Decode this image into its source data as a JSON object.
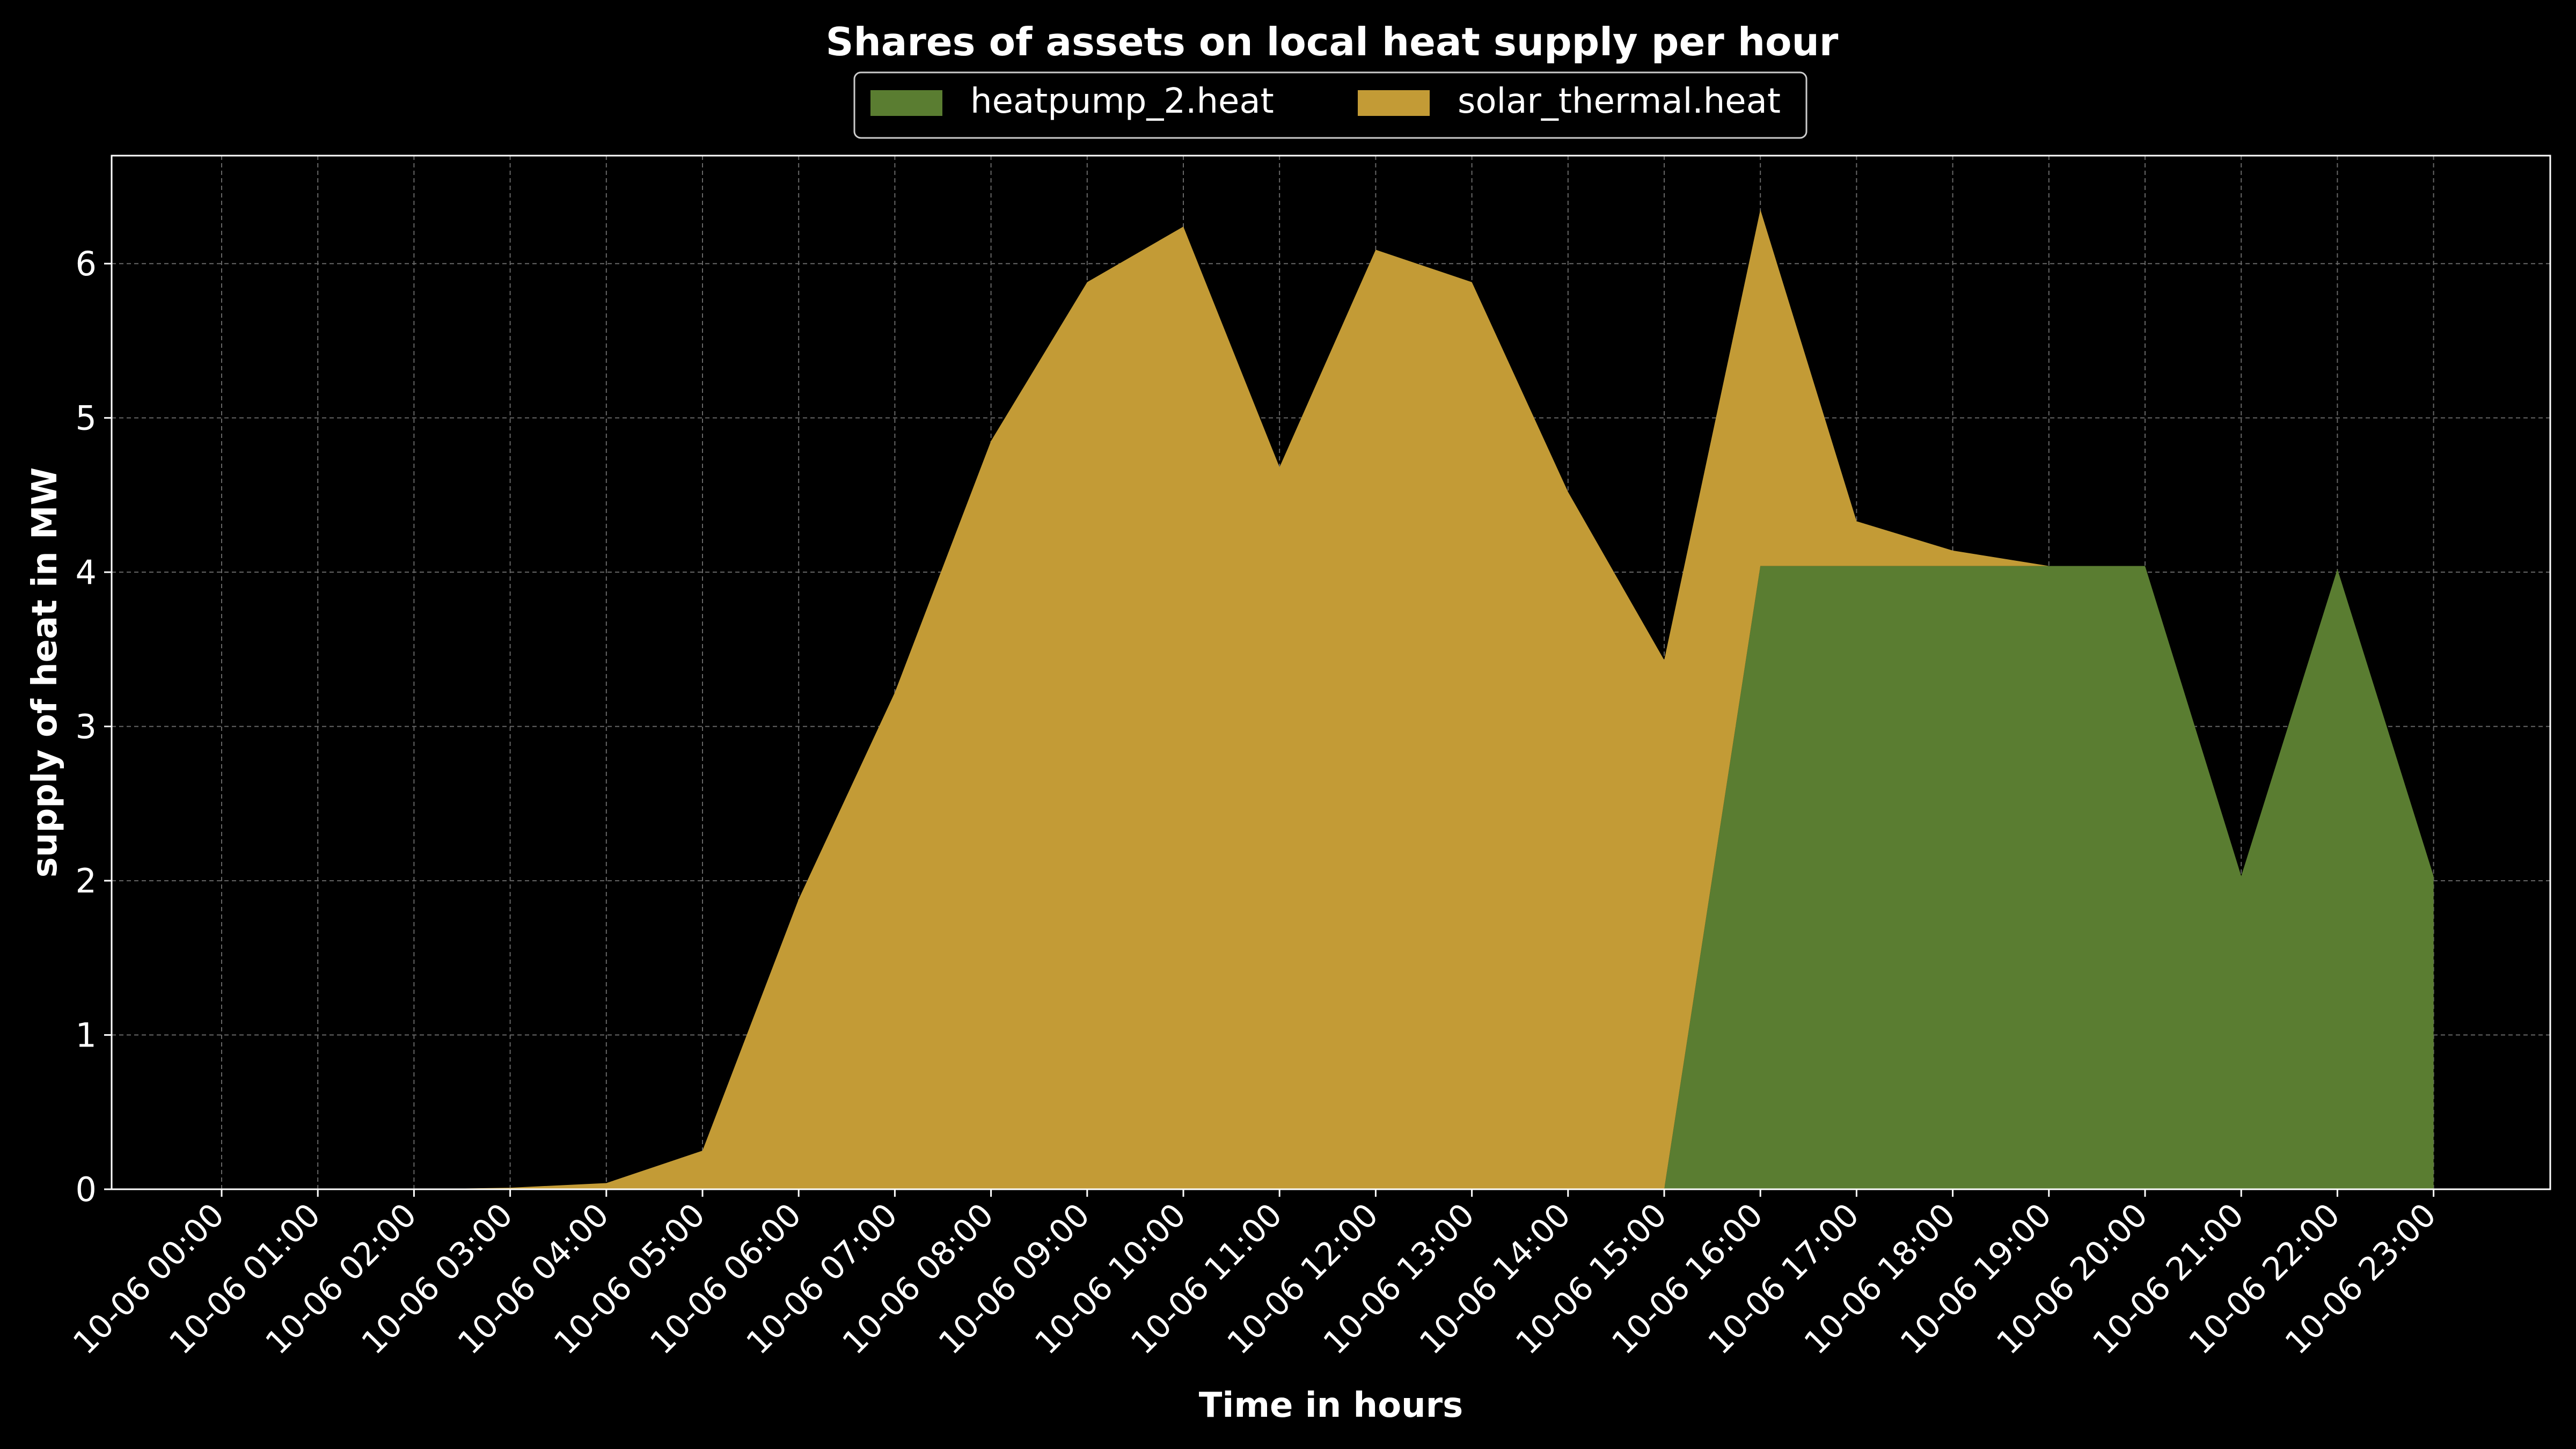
{
  "chart_data": {
    "type": "area",
    "stacked": true,
    "title": "Shares of assets on local heat supply per hour",
    "xlabel": "Time in hours",
    "ylabel": "supply of heat in MW",
    "x": [
      "10-06 00:00",
      "10-06 01:00",
      "10-06 02:00",
      "10-06 03:00",
      "10-06 04:00",
      "10-06 05:00",
      "10-06 06:00",
      "10-06 07:00",
      "10-06 08:00",
      "10-06 09:00",
      "10-06 10:00",
      "10-06 11:00",
      "10-06 12:00",
      "10-06 13:00",
      "10-06 14:00",
      "10-06 15:00",
      "10-06 16:00",
      "10-06 17:00",
      "10-06 18:00",
      "10-06 19:00",
      "10-06 20:00",
      "10-06 21:00",
      "10-06 22:00",
      "10-06 23:00"
    ],
    "series": [
      {
        "name": "heatpump_2.heat",
        "color": "#5a7d31",
        "values": [
          0,
          0,
          0,
          0,
          0,
          0,
          0,
          0,
          0,
          0,
          0,
          0,
          0,
          0,
          0,
          0,
          4.04,
          4.04,
          4.04,
          4.04,
          4.04,
          2.03,
          4.02,
          2.03
        ]
      },
      {
        "name": "solar_thermal.heat",
        "color": "#c39b36",
        "values": [
          0,
          0,
          0,
          0.01,
          0.04,
          0.25,
          1.88,
          3.22,
          4.85,
          5.88,
          6.24,
          4.68,
          6.09,
          5.88,
          4.52,
          3.43,
          2.31,
          0.29,
          0.1,
          0,
          0,
          0,
          0,
          0
        ]
      }
    ],
    "ylim": [
      0,
      6.7
    ],
    "yticks": [
      0,
      1,
      2,
      3,
      4,
      5,
      6
    ],
    "grid": true,
    "legend_position": "top-center",
    "background": "#000000",
    "foreground": "#ffffff"
  }
}
